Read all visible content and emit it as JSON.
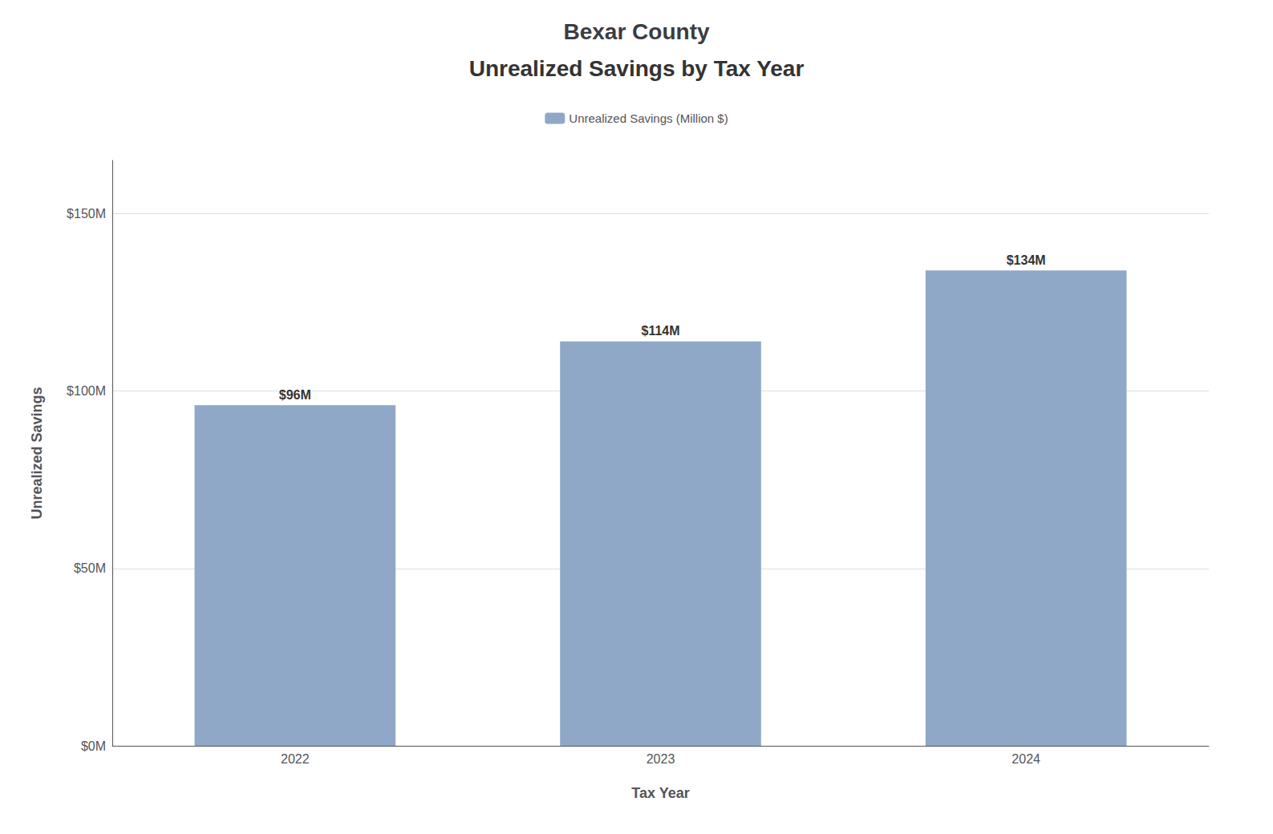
{
  "chart_data": {
    "type": "bar",
    "title": "Bexar County",
    "subtitle": "Unrealized Savings by Tax Year",
    "xlabel": "Tax Year",
    "ylabel": "Unrealized Savings",
    "categories": [
      "2022",
      "2023",
      "2024"
    ],
    "series": [
      {
        "name": "Unrealized Savings (Million $)",
        "color": "#8fa8c8",
        "values": [
          96,
          114,
          134
        ],
        "value_labels": [
          "$96M",
          "$114M",
          "$134M"
        ]
      }
    ],
    "data_labels": true,
    "ylim": [
      0,
      165
    ],
    "yticks": [
      {
        "value": 0,
        "label": "$0M"
      },
      {
        "value": 50,
        "label": "$50M"
      },
      {
        "value": 100,
        "label": "$100M"
      },
      {
        "value": 150,
        "label": "$150M"
      }
    ],
    "grid": true,
    "legend": "top"
  }
}
